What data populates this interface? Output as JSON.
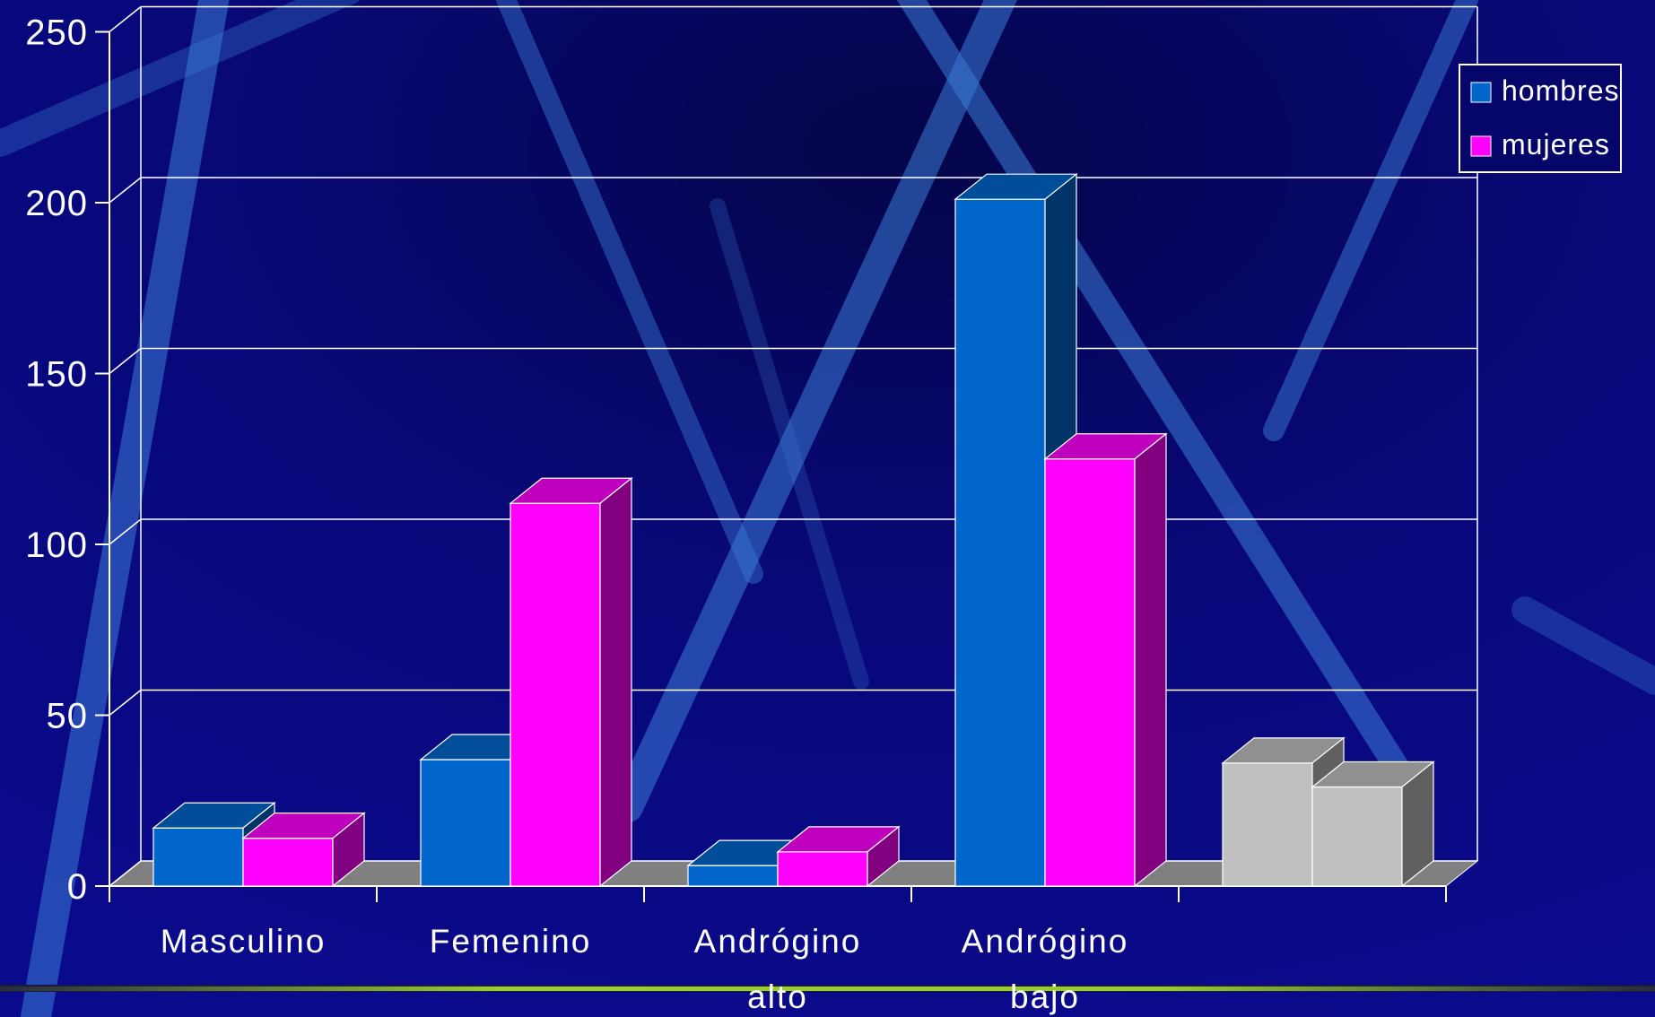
{
  "chart_data": {
    "type": "bar",
    "title": "",
    "xlabel": "",
    "ylabel": "",
    "ylim": [
      0,
      250
    ],
    "yticks": [
      0,
      50,
      100,
      150,
      200,
      250
    ],
    "grid": true,
    "legend_position": "top-right",
    "categories": [
      [
        "Masculino"
      ],
      [
        "Femenino"
      ],
      [
        "Andrógino",
        "alto"
      ],
      [
        "Andrógino",
        "bajo"
      ],
      [
        ""
      ]
    ],
    "series": [
      {
        "name": "hombres",
        "values": [
          17,
          37,
          6,
          201,
          36
        ]
      },
      {
        "name": "mujeres",
        "values": [
          14,
          112,
          10,
          125,
          29
        ]
      }
    ]
  },
  "colors": {
    "background": "#06066a",
    "hombres": "#0066cc",
    "mujeres": "#ff00ff",
    "other_bars": "#c0c0c0",
    "floor": "#808080",
    "gridlines": "#ffffff",
    "accent_line": "#9acd32"
  }
}
